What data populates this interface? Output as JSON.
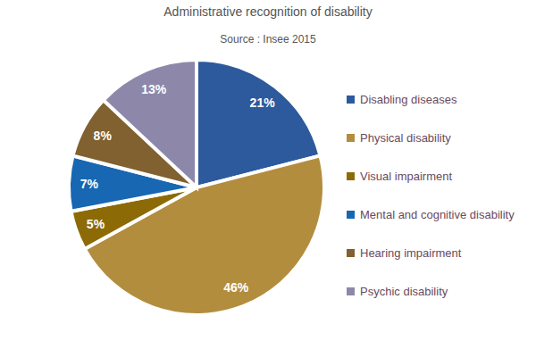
{
  "chart_data": {
    "type": "pie",
    "title": "Administrative recognition of disability",
    "subtitle": "Source : Insee 2015",
    "categories": [
      "Disabling diseases",
      "Physical disability",
      "Visual impairment",
      "Mental and cognitive disability",
      "Hearing impairment",
      "Psychic disability"
    ],
    "values": [
      21,
      46,
      5,
      7,
      8,
      13
    ],
    "value_labels": [
      "21%",
      "46%",
      "5%",
      "7%",
      "8%",
      "13%"
    ],
    "colors": [
      "#2c5a9c",
      "#b38d3e",
      "#8c6a05",
      "#1767b3",
      "#80612f",
      "#8d88aa"
    ],
    "data_labels": true,
    "legend": "right"
  }
}
